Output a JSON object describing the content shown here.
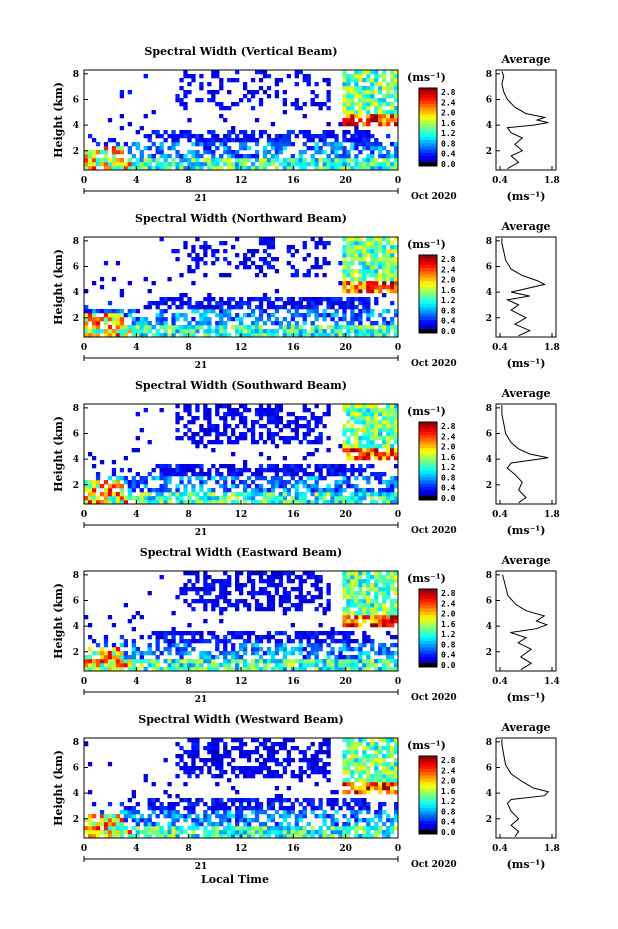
{
  "chart_data": [
    {
      "type": "heatmap",
      "title": "Spectral Width (Vertical Beam)",
      "ylabel": "Height (km)",
      "xticks": [
        "0",
        "4",
        "8",
        "12",
        "16",
        "20",
        "0"
      ],
      "yticks": [
        "2",
        "4",
        "6",
        "8"
      ],
      "day_label": "21",
      "date_label": "Oct 2020",
      "colorbar_unit": "(ms⁻¹)",
      "colorbar_ticks": [
        "2.8",
        "2.4",
        "2.0",
        "1.6",
        "1.2",
        "0.8",
        "0.4",
        "0.0"
      ],
      "average": {
        "title": "Average",
        "xticks": [
          "0.4",
          "1.8"
        ],
        "yticks": [
          "2",
          "4",
          "6",
          "8"
        ],
        "xlabel": "(ms⁻¹)",
        "profile": [
          [
            0.6,
            0.6
          ],
          [
            0.9,
            1.1
          ],
          [
            0.7,
            1.6
          ],
          [
            1.0,
            2.0
          ],
          [
            0.8,
            2.5
          ],
          [
            1.0,
            3.0
          ],
          [
            0.7,
            3.4
          ],
          [
            0.6,
            3.8
          ],
          [
            1.3,
            4.0
          ],
          [
            1.7,
            4.2
          ],
          [
            1.4,
            4.4
          ],
          [
            1.6,
            4.6
          ],
          [
            1.1,
            4.9
          ],
          [
            0.8,
            5.4
          ],
          [
            0.6,
            6.0
          ],
          [
            0.5,
            6.6
          ],
          [
            0.45,
            7.2
          ],
          [
            0.5,
            7.8
          ],
          [
            0.45,
            8.2
          ]
        ]
      }
    },
    {
      "type": "heatmap",
      "title": "Spectral Width (Northward Beam)",
      "ylabel": "Height (km)",
      "xticks": [
        "0",
        "4",
        "8",
        "12",
        "16",
        "20",
        "0"
      ],
      "yticks": [
        "2",
        "4",
        "6",
        "8"
      ],
      "day_label": "21",
      "date_label": "Oct 2020",
      "colorbar_unit": "(ms⁻¹)",
      "colorbar_ticks": [
        "2.8",
        "2.4",
        "2.0",
        "1.6",
        "1.2",
        "0.8",
        "0.4",
        "0.0"
      ],
      "average": {
        "title": "Average",
        "xticks": [
          "0.4",
          "1.8"
        ],
        "yticks": [
          "2",
          "4",
          "6",
          "8"
        ],
        "xlabel": "(ms⁻¹)",
        "profile": [
          [
            0.9,
            0.6
          ],
          [
            1.2,
            1.0
          ],
          [
            0.8,
            1.5
          ],
          [
            1.1,
            2.0
          ],
          [
            0.7,
            2.6
          ],
          [
            0.9,
            3.0
          ],
          [
            0.6,
            3.4
          ],
          [
            1.2,
            3.7
          ],
          [
            0.7,
            4.0
          ],
          [
            1.6,
            4.6
          ],
          [
            1.4,
            4.9
          ],
          [
            1.0,
            5.3
          ],
          [
            0.7,
            5.8
          ],
          [
            0.55,
            6.5
          ],
          [
            0.5,
            7.2
          ],
          [
            0.45,
            7.8
          ],
          [
            0.45,
            8.2
          ]
        ]
      }
    },
    {
      "type": "heatmap",
      "title": "Spectral Width (Southward Beam)",
      "ylabel": "Height (km)",
      "xticks": [
        "0",
        "4",
        "8",
        "12",
        "16",
        "20",
        "0"
      ],
      "yticks": [
        "2",
        "4",
        "6",
        "8"
      ],
      "day_label": "21",
      "date_label": "Oct 2020",
      "colorbar_unit": "(ms⁻¹)",
      "colorbar_ticks": [
        "2.8",
        "2.4",
        "2.0",
        "1.6",
        "1.2",
        "0.8",
        "0.4",
        "0.0"
      ],
      "average": {
        "title": "Average",
        "xticks": [
          "0.4",
          "1.8"
        ],
        "yticks": [
          "2",
          "4",
          "6",
          "8"
        ],
        "xlabel": "(ms⁻¹)",
        "profile": [
          [
            0.9,
            0.6
          ],
          [
            1.1,
            1.0
          ],
          [
            0.9,
            1.6
          ],
          [
            1.0,
            2.2
          ],
          [
            0.8,
            2.8
          ],
          [
            0.6,
            3.3
          ],
          [
            0.7,
            3.7
          ],
          [
            1.7,
            4.1
          ],
          [
            1.2,
            4.4
          ],
          [
            0.9,
            4.8
          ],
          [
            0.7,
            5.3
          ],
          [
            0.55,
            6.0
          ],
          [
            0.5,
            6.8
          ],
          [
            0.45,
            7.5
          ],
          [
            0.45,
            8.2
          ]
        ]
      }
    },
    {
      "type": "heatmap",
      "title": "Spectral Width (Eastward Beam)",
      "ylabel": "Height (km)",
      "xticks": [
        "0",
        "4",
        "8",
        "12",
        "16",
        "20",
        "0"
      ],
      "yticks": [
        "2",
        "4",
        "6",
        "8"
      ],
      "day_label": "21",
      "date_label": "Oct 2020",
      "colorbar_unit": "(ms⁻¹)",
      "colorbar_ticks": [
        "2.8",
        "2.4",
        "2.0",
        "1.6",
        "1.2",
        "0.8",
        "0.4",
        "0.0"
      ],
      "average": {
        "title": "Average",
        "xticks": [
          "0.4",
          "1.4"
        ],
        "yticks": [
          "2",
          "4",
          "6",
          "8"
        ],
        "xlabel": "(ms⁻¹)",
        "profile": [
          [
            0.8,
            0.6
          ],
          [
            1.0,
            1.1
          ],
          [
            0.8,
            1.6
          ],
          [
            1.0,
            2.2
          ],
          [
            0.75,
            2.7
          ],
          [
            0.9,
            3.1
          ],
          [
            0.6,
            3.5
          ],
          [
            1.1,
            3.8
          ],
          [
            1.3,
            4.1
          ],
          [
            1.1,
            4.4
          ],
          [
            1.25,
            4.8
          ],
          [
            0.9,
            5.2
          ],
          [
            0.7,
            5.7
          ],
          [
            0.55,
            6.4
          ],
          [
            0.5,
            7.2
          ],
          [
            0.45,
            8.0
          ]
        ]
      }
    },
    {
      "type": "heatmap",
      "title": "Spectral Width (Westward Beam)",
      "ylabel": "Height (km)",
      "xticks": [
        "0",
        "4",
        "8",
        "12",
        "16",
        "20",
        "0"
      ],
      "yticks": [
        "2",
        "4",
        "6",
        "8"
      ],
      "day_label": "21",
      "date_label": "Oct 2020",
      "colorbar_unit": "(ms⁻¹)",
      "colorbar_ticks": [
        "2.8",
        "2.4",
        "2.0",
        "1.6",
        "1.2",
        "0.8",
        "0.4",
        "0.0"
      ],
      "xlabel": "Local Time",
      "average": {
        "title": "Average",
        "xticks": [
          "0.4",
          "1.8"
        ],
        "yticks": [
          "2",
          "4",
          "6",
          "8"
        ],
        "xlabel": "(ms⁻¹)",
        "profile": [
          [
            0.8,
            0.6
          ],
          [
            0.9,
            1.0
          ],
          [
            0.7,
            1.5
          ],
          [
            0.9,
            2.0
          ],
          [
            0.7,
            2.6
          ],
          [
            0.6,
            3.2
          ],
          [
            0.7,
            3.5
          ],
          [
            1.6,
            3.8
          ],
          [
            1.7,
            4.1
          ],
          [
            1.3,
            4.4
          ],
          [
            1.0,
            4.9
          ],
          [
            0.7,
            5.5
          ],
          [
            0.55,
            6.2
          ],
          [
            0.5,
            7.0
          ],
          [
            0.45,
            7.8
          ],
          [
            0.45,
            8.2
          ]
        ]
      }
    }
  ]
}
